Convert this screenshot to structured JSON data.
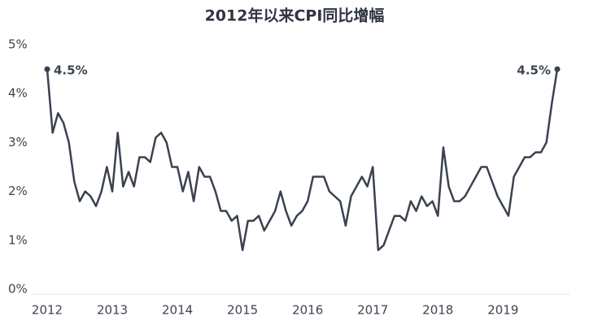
{
  "chart_data": {
    "type": "line",
    "title": "2012年以来CPI同比增幅",
    "color": "#3a4250",
    "categories": [
      "2012",
      null,
      null,
      null,
      null,
      null,
      null,
      null,
      null,
      null,
      null,
      null,
      "2013",
      null,
      null,
      null,
      null,
      null,
      null,
      null,
      null,
      null,
      null,
      null,
      "2014",
      null,
      null,
      null,
      null,
      null,
      null,
      null,
      null,
      null,
      null,
      null,
      "2015",
      null,
      null,
      null,
      null,
      null,
      null,
      null,
      null,
      null,
      null,
      null,
      "2016",
      null,
      null,
      null,
      null,
      null,
      null,
      null,
      null,
      null,
      null,
      null,
      "2017",
      null,
      null,
      null,
      null,
      null,
      null,
      null,
      null,
      null,
      null,
      null,
      "2018",
      null,
      null,
      null,
      null,
      null,
      null,
      null,
      null,
      null,
      null,
      null,
      "2019",
      null,
      null,
      null,
      null,
      null,
      null,
      null,
      null,
      null,
      null
    ],
    "values": [
      4.5,
      3.2,
      3.6,
      3.4,
      3.0,
      2.2,
      1.8,
      2.0,
      1.9,
      1.7,
      2.0,
      2.5,
      2.0,
      3.2,
      2.1,
      2.4,
      2.1,
      2.7,
      2.7,
      2.6,
      3.1,
      3.2,
      3.0,
      2.5,
      2.5,
      2.0,
      2.4,
      1.8,
      2.5,
      2.3,
      2.3,
      2.0,
      1.6,
      1.6,
      1.4,
      1.5,
      0.8,
      1.4,
      1.4,
      1.5,
      1.2,
      1.4,
      1.6,
      2.0,
      1.6,
      1.3,
      1.5,
      1.6,
      1.8,
      2.3,
      2.3,
      2.3,
      2.0,
      1.9,
      1.8,
      1.3,
      1.9,
      2.1,
      2.3,
      2.1,
      2.5,
      0.8,
      0.9,
      1.2,
      1.5,
      1.5,
      1.4,
      1.8,
      1.6,
      1.9,
      1.7,
      1.8,
      1.5,
      2.9,
      2.1,
      1.8,
      1.8,
      1.9,
      2.1,
      2.3,
      2.5,
      2.5,
      2.2,
      1.9,
      1.7,
      1.5,
      2.3,
      2.5,
      2.7,
      2.7,
      2.8,
      2.8,
      3.0,
      3.8,
      4.5
    ],
    "value_labels": [
      "4.5%",
      null,
      null,
      null,
      null,
      null,
      null,
      null,
      null,
      null,
      null,
      null,
      null,
      null,
      null,
      null,
      null,
      null,
      null,
      null,
      null,
      null,
      null,
      null,
      null,
      null,
      null,
      null,
      null,
      null,
      null,
      null,
      null,
      null,
      null,
      null,
      null,
      null,
      null,
      null,
      null,
      null,
      null,
      null,
      null,
      null,
      null,
      null,
      null,
      null,
      null,
      null,
      null,
      null,
      null,
      null,
      null,
      null,
      null,
      null,
      null,
      null,
      null,
      null,
      null,
      null,
      null,
      null,
      null,
      null,
      null,
      null,
      null,
      null,
      null,
      null,
      null,
      null,
      null,
      null,
      null,
      null,
      null,
      null,
      null,
      null,
      null,
      null,
      null,
      null,
      null,
      null,
      null,
      null,
      "4.5%"
    ],
    "ylim": [
      0,
      5
    ],
    "yticks": [
      {
        "value": 0,
        "label": "0%"
      },
      {
        "value": 1,
        "label": "1%"
      },
      {
        "value": 2,
        "label": "2%"
      },
      {
        "value": 3,
        "label": "3%"
      },
      {
        "value": 4,
        "label": "4%"
      },
      {
        "value": 5,
        "label": "5%"
      }
    ]
  }
}
